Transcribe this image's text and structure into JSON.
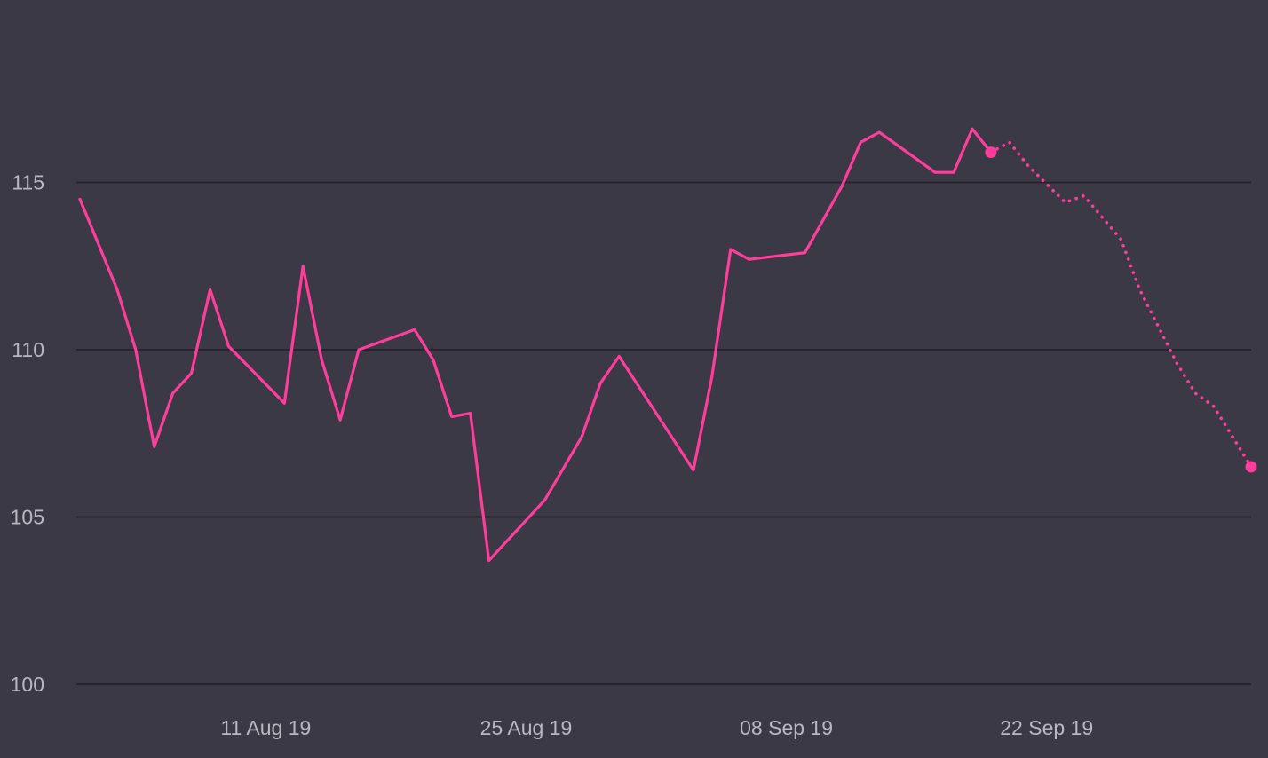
{
  "colors": {
    "background": "#3a3945",
    "gridline": "#26252f",
    "tick_label": "#b9b8c2",
    "series": "#ff3d9a"
  },
  "chart_data": {
    "type": "line",
    "title": "",
    "xlabel": "",
    "ylabel": "",
    "grid": true,
    "legend": "none",
    "xlim": [
      "2019-08-01",
      "2019-10-03"
    ],
    "ylim": [
      100,
      120
    ],
    "x_ticks": [
      {
        "date": "2019-08-11",
        "label": "11 Aug 19"
      },
      {
        "date": "2019-08-25",
        "label": "25 Aug 19"
      },
      {
        "date": "2019-09-08",
        "label": "08 Sep 19"
      },
      {
        "date": "2019-09-22",
        "label": "22 Sep 19"
      }
    ],
    "y_ticks": [
      {
        "value": 100,
        "label": "100"
      },
      {
        "value": 105,
        "label": "105"
      },
      {
        "value": 110,
        "label": "110"
      },
      {
        "value": 115,
        "label": "115"
      }
    ],
    "series": [
      {
        "name": "",
        "style": "solid",
        "color": "#ff3d9a",
        "end_marker": true,
        "points": [
          {
            "x": "2019-08-01",
            "y": 114.5
          },
          {
            "x": "2019-08-03",
            "y": 111.8
          },
          {
            "x": "2019-08-04",
            "y": 110.0
          },
          {
            "x": "2019-08-05",
            "y": 107.1
          },
          {
            "x": "2019-08-06",
            "y": 108.7
          },
          {
            "x": "2019-08-07",
            "y": 109.3
          },
          {
            "x": "2019-08-08",
            "y": 111.8
          },
          {
            "x": "2019-08-09",
            "y": 110.1
          },
          {
            "x": "2019-08-12",
            "y": 108.4
          },
          {
            "x": "2019-08-13",
            "y": 112.5
          },
          {
            "x": "2019-08-14",
            "y": 109.7
          },
          {
            "x": "2019-08-15",
            "y": 107.9
          },
          {
            "x": "2019-08-16",
            "y": 110.0
          },
          {
            "x": "2019-08-19",
            "y": 110.6
          },
          {
            "x": "2019-08-20",
            "y": 109.7
          },
          {
            "x": "2019-08-21",
            "y": 108.0
          },
          {
            "x": "2019-08-22",
            "y": 108.1
          },
          {
            "x": "2019-08-23",
            "y": 103.7
          },
          {
            "x": "2019-08-26",
            "y": 105.5
          },
          {
            "x": "2019-08-28",
            "y": 107.4
          },
          {
            "x": "2019-08-29",
            "y": 109.0
          },
          {
            "x": "2019-08-30",
            "y": 109.8
          },
          {
            "x": "2019-09-03",
            "y": 106.4
          },
          {
            "x": "2019-09-04",
            "y": 109.2
          },
          {
            "x": "2019-09-05",
            "y": 113.0
          },
          {
            "x": "2019-09-06",
            "y": 112.7
          },
          {
            "x": "2019-09-09",
            "y": 112.9
          },
          {
            "x": "2019-09-11",
            "y": 114.9
          },
          {
            "x": "2019-09-12",
            "y": 116.2
          },
          {
            "x": "2019-09-13",
            "y": 116.5
          },
          {
            "x": "2019-09-16",
            "y": 115.3
          },
          {
            "x": "2019-09-17",
            "y": 115.3
          },
          {
            "x": "2019-09-18",
            "y": 116.6
          },
          {
            "x": "2019-09-19",
            "y": 115.9
          }
        ]
      },
      {
        "name": "",
        "style": "dotted",
        "color": "#ff3d9a",
        "end_marker": true,
        "points": [
          {
            "x": "2019-09-19",
            "y": 115.9
          },
          {
            "x": "2019-09-20",
            "y": 116.2
          },
          {
            "x": "2019-09-21",
            "y": 115.5
          },
          {
            "x": "2019-09-23",
            "y": 114.4
          },
          {
            "x": "2019-09-24",
            "y": 114.6
          },
          {
            "x": "2019-09-26",
            "y": 113.3
          },
          {
            "x": "2019-09-27",
            "y": 111.8
          },
          {
            "x": "2019-09-29",
            "y": 109.6
          },
          {
            "x": "2019-09-30",
            "y": 108.7
          },
          {
            "x": "2019-10-01",
            "y": 108.3
          },
          {
            "x": "2019-10-03",
            "y": 106.5
          }
        ]
      }
    ]
  }
}
